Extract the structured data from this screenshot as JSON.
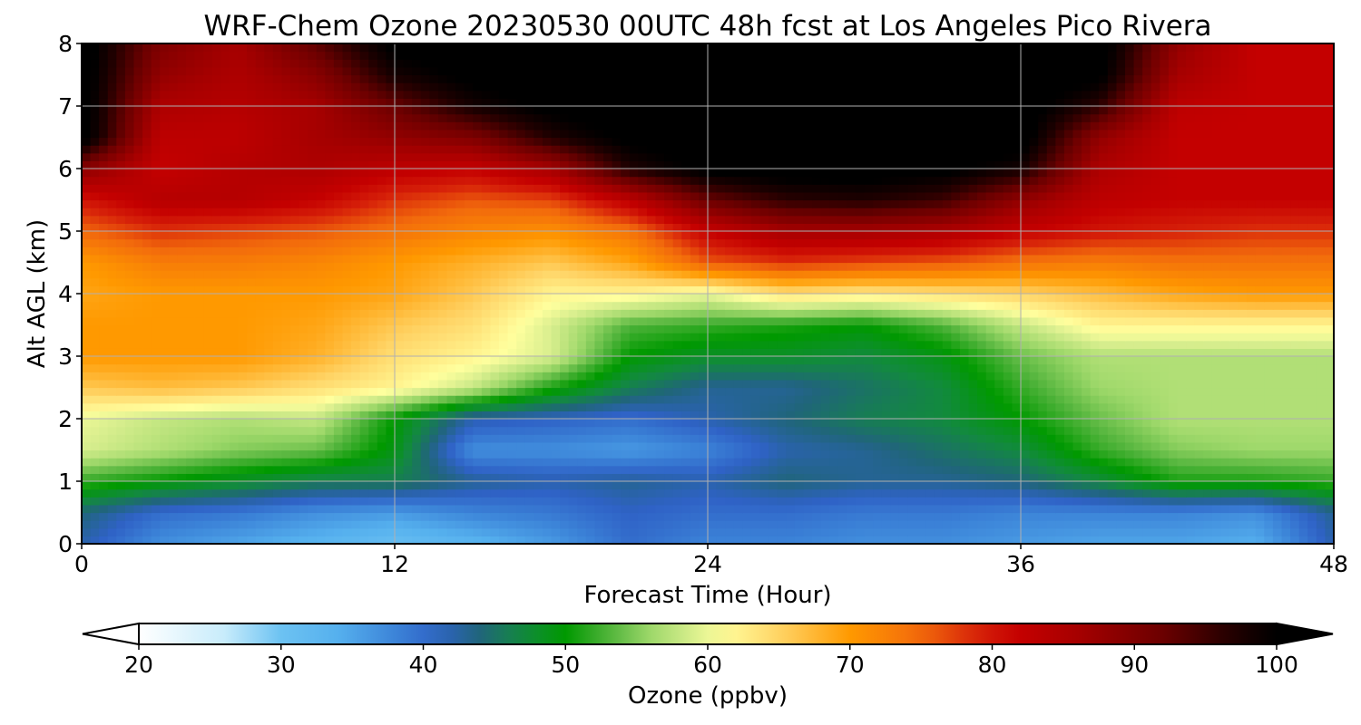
{
  "chart_data": {
    "type": "heatmap",
    "title": "WRF-Chem Ozone  20230530 00UTC 48h fcst at Los Angeles Pico Rivera",
    "xlabel": "Forecast Time (Hour)",
    "ylabel": "Alt AGL (km)",
    "xlim": [
      0,
      48
    ],
    "ylim": [
      0,
      8
    ],
    "x_ticks": [
      0,
      12,
      24,
      36,
      48
    ],
    "y_ticks": [
      0,
      1,
      2,
      3,
      4,
      5,
      6,
      7,
      8
    ],
    "grid": true,
    "x": [
      0,
      3,
      6,
      9,
      12,
      15,
      18,
      21,
      24,
      27,
      30,
      33,
      36,
      39,
      42,
      45,
      48
    ],
    "y": [
      0,
      0.5,
      1,
      1.5,
      2,
      2.5,
      3,
      3.5,
      4,
      4.5,
      5,
      5.5,
      6,
      6.5,
      7,
      7.5,
      8
    ],
    "z": [
      [
        42,
        37,
        35,
        33,
        31,
        33,
        36,
        40,
        38,
        38,
        37,
        37,
        36,
        35,
        35,
        34,
        42
      ],
      [
        44,
        40,
        39,
        37,
        36,
        38,
        39,
        41,
        40,
        40,
        39,
        39,
        38,
        38,
        38,
        37,
        43
      ],
      [
        52,
        50,
        48,
        46,
        46,
        43,
        42,
        43,
        42,
        44,
        43,
        43,
        44,
        47,
        51,
        51,
        52
      ],
      [
        59,
        57,
        55,
        54,
        49,
        37,
        37,
        36,
        38,
        42,
        43,
        45,
        47,
        52,
        55,
        56,
        56
      ],
      [
        60,
        58,
        57,
        58,
        50,
        42,
        41,
        40,
        42,
        44,
        46,
        47,
        50,
        54,
        57,
        57,
        57
      ],
      [
        66,
        67,
        66,
        64,
        62,
        58,
        51,
        46,
        43,
        43,
        45,
        47,
        52,
        56,
        57,
        57,
        57
      ],
      [
        70,
        70,
        70,
        68,
        64,
        62,
        59,
        50,
        48,
        48,
        47,
        49,
        54,
        57,
        57,
        57,
        57
      ],
      [
        70,
        70,
        70,
        69,
        66,
        64,
        59,
        53,
        52,
        51,
        50,
        53,
        58,
        62,
        62,
        62,
        62
      ],
      [
        69,
        70,
        70,
        70,
        69,
        66,
        62,
        62,
        60,
        64,
        63,
        64,
        65,
        67,
        69,
        70,
        70
      ],
      [
        70,
        73,
        73,
        72,
        70,
        68,
        66,
        69,
        76,
        78,
        77,
        76,
        74,
        73,
        74,
        74,
        74
      ],
      [
        75,
        78,
        77,
        76,
        74,
        72,
        71,
        74,
        82,
        86,
        86,
        85,
        82,
        80,
        79,
        78,
        78
      ],
      [
        80,
        84,
        84,
        82,
        78,
        76,
        77,
        83,
        92,
        96,
        97,
        95,
        88,
        83,
        82,
        82,
        82
      ],
      [
        89,
        82,
        84,
        85,
        83,
        82,
        86,
        97,
        101,
        102,
        102,
        101,
        98,
        85,
        82,
        82,
        82
      ],
      [
        102,
        83,
        83,
        86,
        88,
        90,
        97,
        101,
        102,
        102,
        102,
        102,
        102,
        88,
        82,
        82,
        82
      ],
      [
        102,
        85,
        84,
        86,
        92,
        98,
        101,
        102,
        102,
        102,
        102,
        102,
        102,
        96,
        83,
        82,
        82
      ],
      [
        102,
        88,
        85,
        89,
        98,
        101,
        102,
        102,
        102,
        102,
        102,
        102,
        102,
        101,
        86,
        82,
        82
      ],
      [
        102,
        90,
        86,
        93,
        101,
        102,
        102,
        102,
        102,
        102,
        102,
        102,
        102,
        102,
        88,
        82,
        82
      ]
    ],
    "colorbar": {
      "label": "Ozone  (ppbv)",
      "min": 20,
      "max": 100,
      "ticks": [
        20,
        30,
        40,
        50,
        60,
        70,
        80,
        90,
        100
      ],
      "extend": "both",
      "stops": [
        {
          "v": 20,
          "c": "#ffffff"
        },
        {
          "v": 26,
          "c": "#c8ecfb"
        },
        {
          "v": 30,
          "c": "#6cc2f2"
        },
        {
          "v": 34,
          "c": "#55b0ee"
        },
        {
          "v": 38,
          "c": "#3c84d8"
        },
        {
          "v": 41,
          "c": "#2f62c6"
        },
        {
          "v": 44,
          "c": "#20657a"
        },
        {
          "v": 47,
          "c": "#128a3e"
        },
        {
          "v": 50,
          "c": "#009900"
        },
        {
          "v": 53,
          "c": "#4fb33a"
        },
        {
          "v": 56,
          "c": "#9ed86a"
        },
        {
          "v": 59,
          "c": "#d8ee8e"
        },
        {
          "v": 61,
          "c": "#ffff9e"
        },
        {
          "v": 65,
          "c": "#ffd466"
        },
        {
          "v": 70,
          "c": "#ff9900"
        },
        {
          "v": 75,
          "c": "#f26a0c"
        },
        {
          "v": 79,
          "c": "#d62009"
        },
        {
          "v": 82,
          "c": "#c40000"
        },
        {
          "v": 86,
          "c": "#a60000"
        },
        {
          "v": 92,
          "c": "#6b0000"
        },
        {
          "v": 97,
          "c": "#1f0000"
        },
        {
          "v": 100,
          "c": "#000000"
        }
      ]
    }
  }
}
